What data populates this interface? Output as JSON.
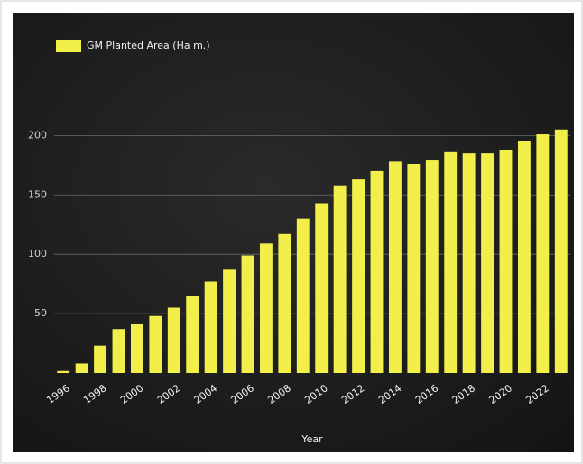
{
  "chart_data": {
    "type": "bar",
    "legend_label": "GM Planted Area (Ha m.)",
    "x_label": "Year",
    "categories": [
      "1996",
      null,
      "1998",
      null,
      "2000",
      null,
      "2002",
      null,
      "2004",
      null,
      "2006",
      null,
      "2008",
      null,
      "2010",
      null,
      "2012",
      null,
      "2014",
      null,
      "2016",
      null,
      "2018",
      null,
      "2020",
      null,
      "2022",
      null
    ],
    "values": [
      1.7,
      8,
      23,
      37,
      41,
      48,
      55,
      65,
      77,
      87,
      99,
      109,
      117,
      130,
      143,
      158,
      163,
      170,
      178,
      176,
      179,
      186,
      185,
      185,
      188,
      195,
      201,
      205
    ],
    "color": "#f2ef4a",
    "ylim": [
      0,
      220
    ],
    "yticks": [
      50,
      100,
      150,
      200
    ],
    "grid": true
  }
}
